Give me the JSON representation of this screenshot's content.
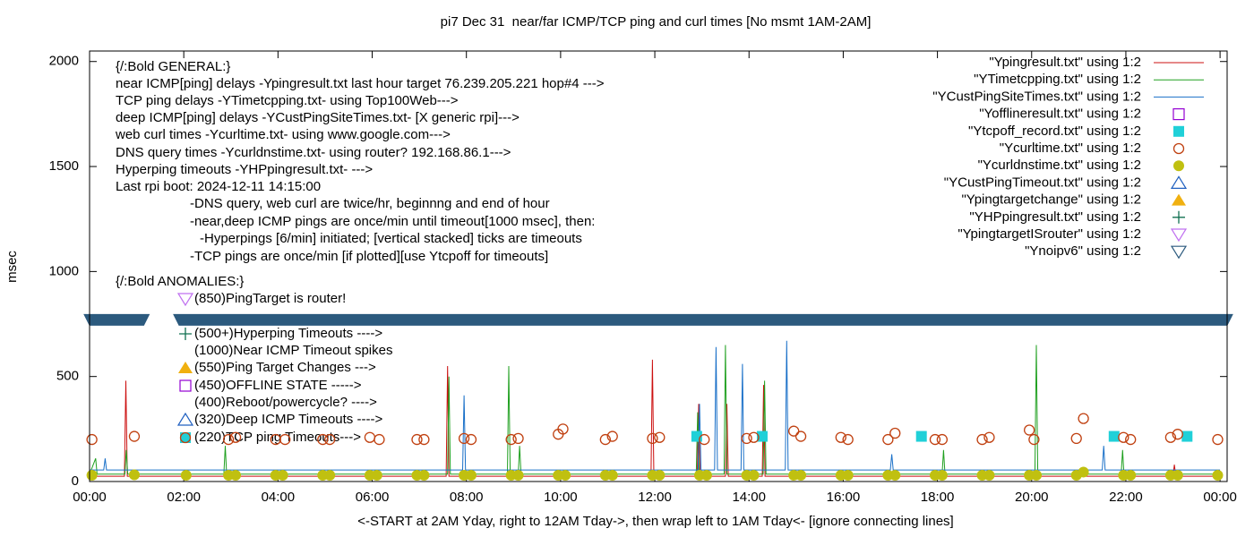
{
  "chart_data": {
    "type": "line",
    "title": "pi7 Dec 31  near/far ICMP/TCP ping and curl times [No msmt 1AM-2AM]",
    "x_label": "<-START at 2AM Yday, right to 12AM Tday->, then wrap left to 1AM Tday<- [ignore connecting lines]",
    "y_label": "msec",
    "xlim": [
      0,
      24.15
    ],
    "ylim": [
      0,
      2050
    ],
    "xticks": [
      {
        "value": 0,
        "label": "00:00"
      },
      {
        "value": 2,
        "label": "02:00"
      },
      {
        "value": 4,
        "label": "04:00"
      },
      {
        "value": 6,
        "label": "06:00"
      },
      {
        "value": 8,
        "label": "08:00"
      },
      {
        "value": 10,
        "label": "10:00"
      },
      {
        "value": 12,
        "label": "12:00"
      },
      {
        "value": 14,
        "label": "14:00"
      },
      {
        "value": 16,
        "label": "16:00"
      },
      {
        "value": 18,
        "label": "18:00"
      },
      {
        "value": 20,
        "label": "20:00"
      },
      {
        "value": 22,
        "label": "22:00"
      },
      {
        "value": 24,
        "label": "00:00"
      }
    ],
    "yticks": [
      0,
      500,
      1000,
      1500,
      2000
    ],
    "legend": "top-right",
    "notes": [
      "{/:Bold GENERAL:}",
      "near ICMP[ping] delays -Ypingresult.txt last hour target 76.239.205.221 hop#4 --->",
      "TCP ping delays -YTimetcpping.txt- using Top100Web--->",
      "deep ICMP[ping] delays -YCustPingSiteTimes.txt- [X generic rpi]--->",
      "web curl times -Ycurltime.txt- using www.google.com--->",
      "DNS query times -Ycurldnstime.txt- using router? 192.168.86.1--->",
      "Hyperping timeouts -YHPpingresult.txt- --->",
      "Last rpi boot: 2024-12-11 14:15:00",
      "-DNS query, web curl are twice/hr, beginnng and end of hour",
      "-near,deep ICMP pings are once/min until timeout[1000 msec], then:",
      "-Hyperpings [6/min] initiated; [vertical stacked] ticks are timeouts",
      "-TCP pings are once/min [if plotted][use Ytcpoff for timeouts]",
      "{/:Bold ANOMALIES:}"
    ],
    "anomalies": [
      "(850)PingTarget is router!",
      "(500+)Hyperping Timeouts ---->",
      "(1000)Near ICMP Timeout spikes",
      "(550)Ping Target Changes --->",
      "(450)OFFLINE STATE ----->",
      "(400)Reboot/powercycle? ---->",
      "(320)Deep ICMP Timeouts ---->",
      "(220)TCP ping Timeouts--->"
    ],
    "series": [
      {
        "name": "\"Ypingresult.txt\" using 1:2",
        "color": "#cc1010",
        "marker": "line",
        "x": [
          0,
          0.74,
          0.77,
          0.8,
          1.1,
          2,
          7.57,
          7.6,
          7.63,
          11.92,
          11.95,
          11.98,
          12.9,
          12.93,
          12.96,
          13.5,
          13.53,
          13.56,
          14.28,
          14.31,
          14.34,
          23,
          23.03,
          23.06,
          24
        ],
        "values": [
          25,
          25,
          480,
          25,
          25,
          25,
          25,
          550,
          25,
          25,
          580,
          25,
          25,
          370,
          25,
          25,
          370,
          25,
          25,
          460,
          25,
          25,
          80,
          25,
          25
        ]
      },
      {
        "name": "\"YTimetcpping.txt\" using 1:2",
        "color": "#20a020",
        "marker": "line",
        "x": [
          0,
          0.13,
          0.16,
          0.75,
          0.78,
          0.81,
          1.1,
          2,
          2.85,
          2.88,
          2.91,
          7.6,
          7.63,
          7.66,
          8.87,
          8.9,
          8.93,
          9.1,
          9.13,
          9.16,
          12.88,
          12.91,
          12.94,
          13.47,
          13.5,
          13.53,
          14.3,
          14.33,
          14.36,
          18.1,
          18.13,
          18.16,
          20.07,
          20.1,
          20.13,
          21.9,
          21.93,
          21.96,
          24
        ],
        "values": [
          35,
          110,
          35,
          35,
          150,
          35,
          35,
          35,
          35,
          170,
          35,
          35,
          500,
          35,
          35,
          550,
          35,
          35,
          170,
          35,
          35,
          330,
          35,
          35,
          650,
          35,
          35,
          480,
          35,
          35,
          150,
          35,
          35,
          650,
          35,
          35,
          150,
          35,
          35
        ]
      },
      {
        "name": "\"YCustPingSiteTimes.txt\" using 1:2",
        "color": "#1a70c8",
        "marker": "line",
        "x": [
          0,
          0.3,
          0.33,
          0.36,
          1.1,
          2,
          7.92,
          7.95,
          7.98,
          12.92,
          12.95,
          12.98,
          13.27,
          13.3,
          13.33,
          13.83,
          13.86,
          13.89,
          14.77,
          14.8,
          14.83,
          17,
          17.03,
          17.06,
          21.5,
          21.53,
          21.56,
          24
        ],
        "values": [
          55,
          55,
          110,
          55,
          55,
          55,
          55,
          410,
          55,
          55,
          370,
          55,
          55,
          640,
          55,
          55,
          560,
          55,
          55,
          670,
          55,
          55,
          130,
          55,
          55,
          170,
          55,
          55
        ]
      },
      {
        "name": "\"Yofflineresult.txt\" using 1:2",
        "color": "#9400d3",
        "marker": "square-open",
        "x": [],
        "values": []
      },
      {
        "name": "\"Ytcpoff_record.txt\" using 1:2",
        "color": "#20d0d8",
        "marker": "square",
        "x": [
          12.89,
          14.28,
          17.66,
          21.75,
          23.3
        ],
        "values": [
          215,
          215,
          215,
          215,
          215
        ]
      },
      {
        "name": "\"Ycurltime.txt\" using 1:2",
        "color": "#c04010",
        "marker": "circle-open",
        "x": [
          0.05,
          0.95,
          2.95,
          3.1,
          3.95,
          4.15,
          4.95,
          5.1,
          5.95,
          6.15,
          6.95,
          7.1,
          7.95,
          8.1,
          8.95,
          9.1,
          9.95,
          10.05,
          10.95,
          11.1,
          11.95,
          12.1,
          13.05,
          13.95,
          14.1,
          14.95,
          15.1,
          15.95,
          16.1,
          16.95,
          17.1,
          17.95,
          18.1,
          18.95,
          19.1,
          19.95,
          20.05,
          20.95,
          21.1,
          21.95,
          22.1,
          22.95,
          23.1,
          23.95
        ],
        "values": [
          200,
          215,
          200,
          210,
          200,
          200,
          200,
          200,
          210,
          200,
          200,
          200,
          205,
          200,
          200,
          205,
          225,
          250,
          200,
          215,
          205,
          210,
          200,
          205,
          210,
          240,
          215,
          210,
          200,
          200,
          230,
          200,
          200,
          200,
          210,
          245,
          200,
          205,
          300,
          210,
          200,
          210,
          225,
          200
        ]
      },
      {
        "name": "\"Ycurldnstime.txt\" using 1:2",
        "color": "#c0c010",
        "marker": "dot",
        "x": [
          0.05,
          0.95,
          2.05,
          2.95,
          3.1,
          3.95,
          4.1,
          4.95,
          5.1,
          5.95,
          6.1,
          6.95,
          7.1,
          7.95,
          8.1,
          8.95,
          9.1,
          9.95,
          10.1,
          10.95,
          11.1,
          11.95,
          12.1,
          12.95,
          13.1,
          13.95,
          14.1,
          14.95,
          15.1,
          15.95,
          16.1,
          16.95,
          17.1,
          17.95,
          18.1,
          18.95,
          19.1,
          19.95,
          20.1,
          20.95,
          21.1,
          21.95,
          22.1,
          22.95,
          23.1,
          23.95
        ],
        "values": [
          30,
          32,
          30,
          30,
          30,
          30,
          30,
          30,
          30,
          30,
          30,
          30,
          30,
          30,
          30,
          30,
          30,
          30,
          30,
          30,
          30,
          30,
          30,
          30,
          30,
          30,
          30,
          30,
          30,
          30,
          30,
          30,
          30,
          30,
          30,
          30,
          30,
          30,
          30,
          30,
          45,
          30,
          30,
          30,
          30,
          30
        ]
      },
      {
        "name": "\"YCustPingTimeout.txt\" using 1:2",
        "color": "#2060c0",
        "marker": "triangle-open",
        "x": [],
        "values": []
      },
      {
        "name": "\"Ypingtargetchange\" using 1:2",
        "color": "#f0b010",
        "marker": "triangle",
        "x": [],
        "values": []
      },
      {
        "name": "\"YHPpingresult.txt\" using 1:2",
        "color": "#107050",
        "marker": "plus",
        "x": [],
        "values": []
      },
      {
        "name": "\"YpingtargetISrouter\" using 1:2",
        "color": "#c070f0",
        "marker": "triangle-down-open",
        "x": [],
        "values": []
      },
      {
        "name": "\"Ynoipv6\" using 1:2",
        "color": "#2c5a7e",
        "marker": "triangle-down",
        "style": "band",
        "x": [
          0,
          1.15,
          1.5,
          1.9,
          24.15
        ],
        "values": [
          770,
          770,
          null,
          770,
          770
        ]
      }
    ]
  }
}
